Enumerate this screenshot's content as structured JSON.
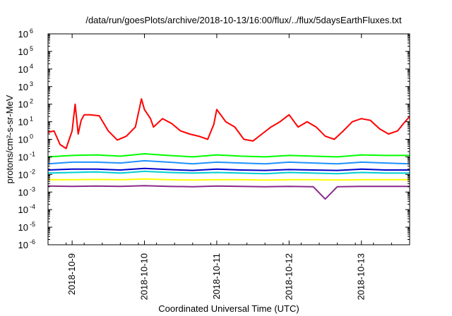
{
  "chart_data": {
    "type": "line",
    "title": "/data/run/goesPlots/archive/2018-10-13/16:00/flux/../flux/5daysEarthFluxes.txt",
    "xlabel": "Coordinated Universal Time (UTC)",
    "ylabel": "protons/cm²-s-sr-MeV",
    "yscale": "log",
    "ylim": [
      1e-06,
      1000000.0
    ],
    "xlim": [
      "2018-10-08T16:00",
      "2018-10-13T16:00"
    ],
    "x_ticks": [
      "2018-10-9",
      "2018-10-10",
      "2018-10-11",
      "2018-10-12",
      "2018-10-13"
    ],
    "y_ticks": [
      {
        "base": "10",
        "exp": "-6"
      },
      {
        "base": "10",
        "exp": "-5"
      },
      {
        "base": "10",
        "exp": "-4"
      },
      {
        "base": "10",
        "exp": "-3"
      },
      {
        "base": "10",
        "exp": "-2"
      },
      {
        "base": "10",
        "exp": "-1"
      },
      {
        "base": "10",
        "exp": "0"
      },
      {
        "base": "10",
        "exp": "1"
      },
      {
        "base": "10",
        "exp": "2"
      },
      {
        "base": "10",
        "exp": "3"
      },
      {
        "base": "10",
        "exp": "4"
      },
      {
        "base": "10",
        "exp": "5"
      },
      {
        "base": "10",
        "exp": "6"
      }
    ],
    "grid": false,
    "legend": "none",
    "series": [
      {
        "color": "#ff0000",
        "x": [
          "2018-10-08T16:00",
          "2018-10-08T18:00",
          "2018-10-08T20:00",
          "2018-10-08T22:00",
          "2018-10-09T00:00",
          "2018-10-09T01:00",
          "2018-10-09T02:00",
          "2018-10-09T03:00",
          "2018-10-09T04:00",
          "2018-10-09T06:00",
          "2018-10-09T09:00",
          "2018-10-09T12:00",
          "2018-10-09T15:00",
          "2018-10-09T18:00",
          "2018-10-09T21:00",
          "2018-10-09T23:00",
          "2018-10-10T00:00",
          "2018-10-10T02:00",
          "2018-10-10T03:00",
          "2018-10-10T06:00",
          "2018-10-10T09:00",
          "2018-10-10T12:00",
          "2018-10-10T15:00",
          "2018-10-10T18:00",
          "2018-10-10T21:00",
          "2018-10-10T23:00",
          "2018-10-11T00:00",
          "2018-10-11T03:00",
          "2018-10-11T06:00",
          "2018-10-11T09:00",
          "2018-10-11T12:00",
          "2018-10-11T15:00",
          "2018-10-11T18:00",
          "2018-10-11T21:00",
          "2018-10-12T00:00",
          "2018-10-12T03:00",
          "2018-10-12T06:00",
          "2018-10-12T09:00",
          "2018-10-12T12:00",
          "2018-10-12T15:00",
          "2018-10-12T18:00",
          "2018-10-12T21:00",
          "2018-10-13T00:00",
          "2018-10-13T03:00",
          "2018-10-13T06:00",
          "2018-10-13T09:00",
          "2018-10-13T12:00",
          "2018-10-13T14:00",
          "2018-10-13T16:00"
        ],
        "y": [
          2.5,
          3,
          0.5,
          0.3,
          3,
          100,
          2,
          12,
          25,
          25,
          22,
          3,
          0.9,
          1.5,
          5,
          200,
          50,
          15,
          5,
          15,
          8,
          3,
          2,
          1.5,
          1,
          7,
          50,
          10,
          5,
          1,
          0.8,
          2,
          5,
          10,
          25,
          5,
          10,
          5,
          1.5,
          1,
          3,
          10,
          15,
          12,
          4,
          2,
          3,
          8,
          20
        ]
      },
      {
        "color": "#00ff00",
        "x": [
          "2018-10-08T16:00",
          "2018-10-09T00:00",
          "2018-10-09T08:00",
          "2018-10-09T16:00",
          "2018-10-10T00:00",
          "2018-10-10T08:00",
          "2018-10-10T16:00",
          "2018-10-11T00:00",
          "2018-10-11T08:00",
          "2018-10-11T16:00",
          "2018-10-12T00:00",
          "2018-10-12T08:00",
          "2018-10-12T16:00",
          "2018-10-13T00:00",
          "2018-10-13T08:00",
          "2018-10-13T16:00"
        ],
        "y": [
          0.1,
          0.12,
          0.13,
          0.11,
          0.15,
          0.12,
          0.1,
          0.13,
          0.11,
          0.1,
          0.12,
          0.11,
          0.1,
          0.13,
          0.12,
          0.12
        ]
      },
      {
        "color": "#1e90ff",
        "x": [
          "2018-10-08T16:00",
          "2018-10-09T00:00",
          "2018-10-09T08:00",
          "2018-10-09T16:00",
          "2018-10-10T00:00",
          "2018-10-10T08:00",
          "2018-10-10T16:00",
          "2018-10-11T00:00",
          "2018-10-11T08:00",
          "2018-10-11T16:00",
          "2018-10-12T00:00",
          "2018-10-12T08:00",
          "2018-10-12T16:00",
          "2018-10-13T00:00",
          "2018-10-13T08:00",
          "2018-10-13T16:00"
        ],
        "y": [
          0.04,
          0.05,
          0.05,
          0.045,
          0.06,
          0.05,
          0.04,
          0.05,
          0.045,
          0.04,
          0.05,
          0.045,
          0.04,
          0.05,
          0.045,
          0.04
        ]
      },
      {
        "color": "#00ced1",
        "x": [
          "2018-10-08T16:00",
          "2018-10-09T00:00",
          "2018-10-09T08:00",
          "2018-10-09T16:00",
          "2018-10-10T00:00",
          "2018-10-10T08:00",
          "2018-10-10T16:00",
          "2018-10-11T00:00",
          "2018-10-11T08:00",
          "2018-10-11T16:00",
          "2018-10-12T00:00",
          "2018-10-12T08:00",
          "2018-10-12T16:00",
          "2018-10-13T00:00",
          "2018-10-13T08:00",
          "2018-10-13T16:00"
        ],
        "y": [
          0.012,
          0.013,
          0.014,
          0.012,
          0.015,
          0.013,
          0.012,
          0.013,
          0.012,
          0.011,
          0.013,
          0.012,
          0.011,
          0.013,
          0.012,
          0.012
        ]
      },
      {
        "color": "#0000cd",
        "x": [
          "2018-10-08T16:00",
          "2018-10-09T00:00",
          "2018-10-09T08:00",
          "2018-10-09T16:00",
          "2018-10-10T00:00",
          "2018-10-10T08:00",
          "2018-10-10T16:00",
          "2018-10-11T00:00",
          "2018-10-11T08:00",
          "2018-10-11T16:00",
          "2018-10-12T00:00",
          "2018-10-12T08:00",
          "2018-10-12T16:00",
          "2018-10-13T00:00",
          "2018-10-13T08:00",
          "2018-10-13T16:00"
        ],
        "y": [
          0.018,
          0.02,
          0.02,
          0.018,
          0.022,
          0.019,
          0.017,
          0.02,
          0.018,
          0.017,
          0.019,
          0.018,
          0.017,
          0.02,
          0.018,
          0.018
        ]
      },
      {
        "color": "#ffff00",
        "x": [
          "2018-10-08T16:00",
          "2018-10-09T00:00",
          "2018-10-09T08:00",
          "2018-10-09T16:00",
          "2018-10-10T00:00",
          "2018-10-10T08:00",
          "2018-10-10T16:00",
          "2018-10-11T00:00",
          "2018-10-11T08:00",
          "2018-10-11T16:00",
          "2018-10-12T00:00",
          "2018-10-12T08:00",
          "2018-10-12T16:00",
          "2018-10-13T00:00",
          "2018-10-13T08:00",
          "2018-10-13T16:00"
        ],
        "y": [
          0.005,
          0.005,
          0.0052,
          0.005,
          0.0055,
          0.005,
          0.0048,
          0.005,
          0.005,
          0.0048,
          0.005,
          0.005,
          0.0048,
          0.005,
          0.005,
          0.005
        ]
      },
      {
        "color": "#8b2a8b",
        "x": [
          "2018-10-08T16:00",
          "2018-10-09T00:00",
          "2018-10-09T08:00",
          "2018-10-09T16:00",
          "2018-10-10T00:00",
          "2018-10-10T08:00",
          "2018-10-10T16:00",
          "2018-10-11T00:00",
          "2018-10-11T08:00",
          "2018-10-11T16:00",
          "2018-10-12T00:00",
          "2018-10-12T08:00",
          "2018-10-12T12:00",
          "2018-10-12T16:00",
          "2018-10-13T00:00",
          "2018-10-13T08:00",
          "2018-10-13T16:00"
        ],
        "y": [
          0.0022,
          0.0021,
          0.0022,
          0.0021,
          0.0023,
          0.0021,
          0.002,
          0.0022,
          0.0021,
          0.002,
          0.0021,
          0.002,
          0.0004,
          0.002,
          0.0021,
          0.0021,
          0.0021
        ]
      }
    ]
  }
}
